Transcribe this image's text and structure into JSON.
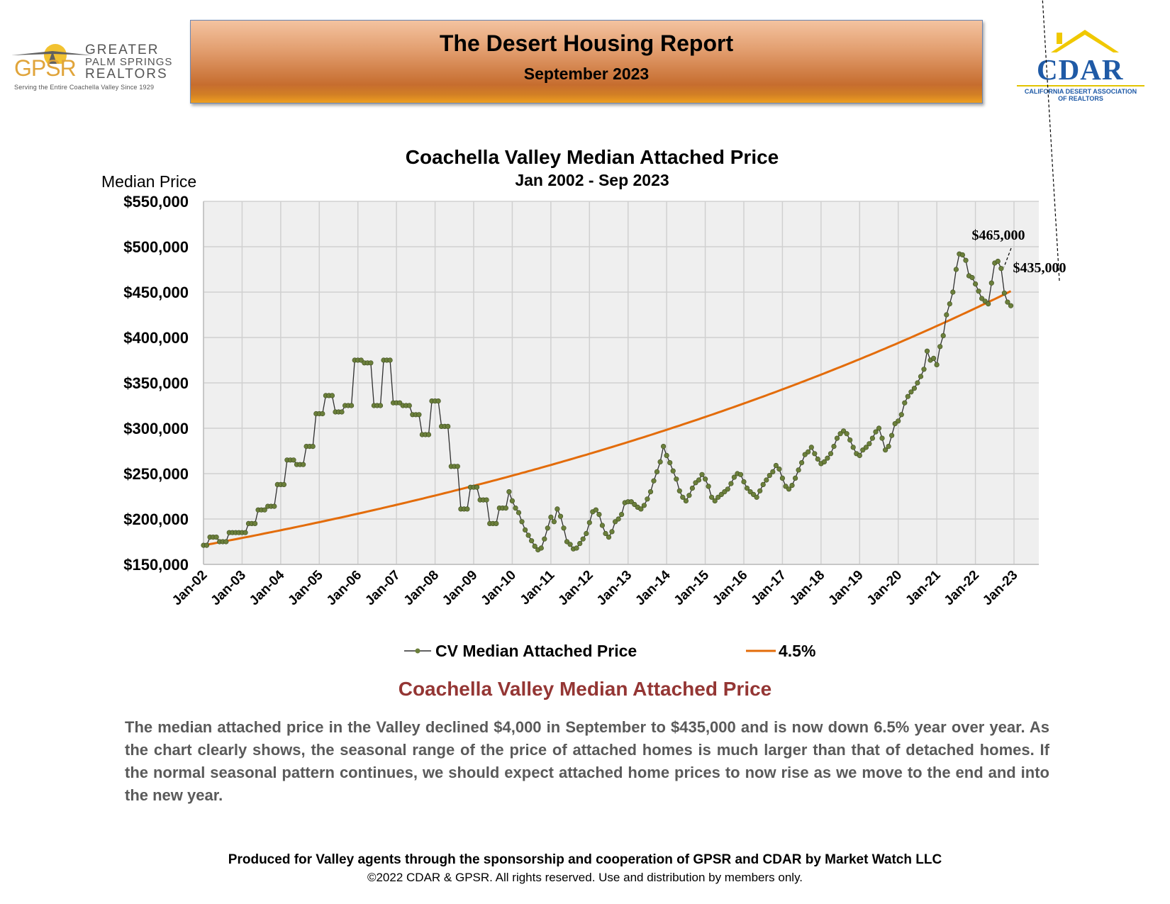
{
  "header": {
    "title": "The Desert Housing Report",
    "subtitle": "September 2023"
  },
  "logos": {
    "gpsr": {
      "mark": "GPSR",
      "name_line1": "GREATER",
      "name_line2": "PALM SPRINGS",
      "name_line3": "REALTORS",
      "tagline": "Serving the Entire Coachella Valley Since 1929"
    },
    "cdar": {
      "mark": "CDAR",
      "sub_line1": "CALIFORNIA DESERT ASSOCIATION",
      "sub_line2": "OF REALTORS"
    }
  },
  "chart_data": {
    "type": "line",
    "title": "Coachella Valley Median Attached Price",
    "subtitle": "Jan 2002 - Sep 2023",
    "ylabel": "Median Price",
    "xlabel": "",
    "ylim": [
      150000,
      550000
    ],
    "yticks": [
      150000,
      200000,
      250000,
      300000,
      350000,
      400000,
      450000,
      500000,
      550000
    ],
    "ytick_labels": [
      "$150,000",
      "$200,000",
      "$250,000",
      "$300,000",
      "$350,000",
      "$400,000",
      "$450,000",
      "$500,000",
      "$550,000"
    ],
    "x_tick_labels": [
      "Jan-02",
      "Jan-03",
      "Jan-04",
      "Jan-05",
      "Jan-06",
      "Jan-07",
      "Jan-08",
      "Jan-09",
      "Jan-10",
      "Jan-11",
      "Jan-12",
      "Jan-13",
      "Jan-14",
      "Jan-15",
      "Jan-16",
      "Jan-17",
      "Jan-18",
      "Jan-19",
      "Jan-20",
      "Jan-21",
      "Jan-22",
      "Jan-23"
    ],
    "grid": true,
    "legend_position": "bottom",
    "series": [
      {
        "name": "CV Median Attached Price",
        "color": "#2f2f2f",
        "marker_color": "#6b7f3b",
        "values": [
          171000,
          171000,
          180000,
          180000,
          180000,
          175000,
          175000,
          175000,
          185000,
          185000,
          185000,
          185000,
          185000,
          185000,
          195000,
          195000,
          195000,
          210000,
          210000,
          210000,
          214000,
          214000,
          214000,
          238000,
          238000,
          238000,
          265000,
          265000,
          265000,
          260000,
          260000,
          260000,
          280000,
          280000,
          280000,
          316000,
          316000,
          316000,
          336000,
          336000,
          336000,
          318000,
          318000,
          318000,
          325000,
          325000,
          325000,
          375000,
          375000,
          375000,
          372000,
          372000,
          372000,
          325000,
          325000,
          325000,
          375000,
          375000,
          375000,
          328000,
          328000,
          328000,
          325000,
          325000,
          325000,
          315000,
          315000,
          315000,
          293000,
          293000,
          293000,
          330000,
          330000,
          330000,
          302000,
          302000,
          302000,
          258000,
          258000,
          258000,
          211000,
          211000,
          211000,
          235000,
          235000,
          235000,
          221000,
          221000,
          221000,
          195000,
          195000,
          195000,
          212000,
          212000,
          212000,
          230000,
          220000,
          212000,
          207000,
          197000,
          188000,
          182000,
          176000,
          170000,
          166000,
          168000,
          178000,
          190000,
          202000,
          197000,
          211000,
          203000,
          190000,
          175000,
          172000,
          167000,
          168000,
          173000,
          178000,
          184000,
          196000,
          208000,
          210000,
          205000,
          193000,
          184000,
          180000,
          186000,
          197000,
          200000,
          205000,
          218000,
          219000,
          219000,
          216000,
          213000,
          211000,
          215000,
          222000,
          230000,
          242000,
          252000,
          263000,
          280000,
          270000,
          262000,
          253000,
          244000,
          231000,
          224000,
          220000,
          226000,
          234000,
          240000,
          243000,
          249000,
          244000,
          236000,
          224000,
          220000,
          224000,
          227000,
          230000,
          233000,
          239000,
          246000,
          250000,
          249000,
          241000,
          234000,
          230000,
          227000,
          224000,
          231000,
          238000,
          243000,
          248000,
          252000,
          259000,
          255000,
          245000,
          236000,
          233000,
          237000,
          245000,
          254000,
          262000,
          271000,
          274000,
          279000,
          272000,
          266000,
          261000,
          263000,
          267000,
          272000,
          280000,
          289000,
          294000,
          297000,
          294000,
          287000,
          279000,
          272000,
          270000,
          276000,
          279000,
          283000,
          289000,
          296000,
          300000,
          289000,
          276000,
          280000,
          292000,
          305000,
          308000,
          315000,
          328000,
          335000,
          340000,
          344000,
          350000,
          357000,
          365000,
          385000,
          375000,
          377000,
          370000,
          390000,
          402000,
          425000,
          437000,
          450000,
          475000,
          492000,
          491000,
          485000,
          468000,
          466000,
          459000,
          451000,
          443000,
          440000,
          437000,
          460000,
          482000,
          484000,
          476000,
          449000,
          439000,
          435000
        ]
      },
      {
        "name": "4.5%",
        "color": "#e36c0a",
        "start_value": 171000,
        "end_value": 451000
      }
    ],
    "annotations": [
      {
        "text": "$465,000",
        "target_index": 248
      },
      {
        "text": "$435,000",
        "target_index": 260
      }
    ]
  },
  "commentary": {
    "title": "Coachella Valley Median Attached Price",
    "body": "The median attached price in the Valley declined $4,000 in September to $435,000 and is now down 6.5% year over year. As the chart clearly shows, the seasonal range of the price of attached homes is much larger than that of detached homes. If the normal seasonal pattern continues, we should expect attached home prices to now rise as we move to the end and into the new year."
  },
  "footer": {
    "line1": "Produced for Valley agents through the sponsorship and cooperation of GPSR and CDAR by Market Watch LLC",
    "line2": "©2022 CDAR & GPSR.  All rights reserved.  Use and distribution by members only."
  }
}
